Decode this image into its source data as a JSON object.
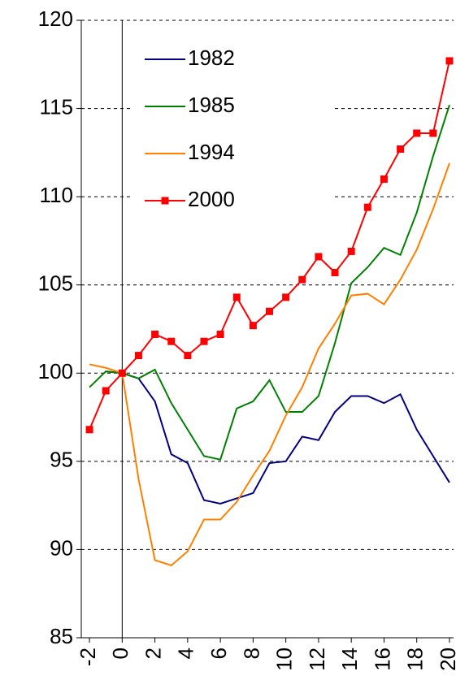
{
  "chart_data": {
    "type": "line",
    "x": [
      -2,
      -1,
      0,
      1,
      2,
      3,
      4,
      5,
      6,
      7,
      8,
      9,
      10,
      11,
      12,
      13,
      14,
      15,
      16,
      17,
      18,
      19,
      20
    ],
    "series": [
      {
        "name": "1982",
        "color": "#000080",
        "values": [
          null,
          100.1,
          100,
          99.7,
          98.4,
          95.4,
          94.9,
          92.8,
          92.6,
          92.9,
          93.2,
          94.9,
          95.0,
          96.4,
          96.2,
          97.8,
          98.7,
          98.7,
          98.3,
          98.8,
          96.8,
          95.3,
          93.8
        ]
      },
      {
        "name": "1985",
        "color": "#008000",
        "values": [
          99.2,
          100.1,
          100,
          99.7,
          100.2,
          98.3,
          96.8,
          95.3,
          95.1,
          98.0,
          98.4,
          99.6,
          97.8,
          97.8,
          98.7,
          101.7,
          105.1,
          106.0,
          107.1,
          106.7,
          109.1,
          112.3,
          115.2
        ]
      },
      {
        "name": "1994",
        "color": "#ff8000",
        "values": [
          100.5,
          100.3,
          100,
          94.0,
          89.4,
          89.1,
          89.9,
          91.7,
          91.7,
          92.7,
          94.2,
          95.6,
          97.6,
          99.2,
          101.4,
          102.8,
          104.4,
          104.5,
          103.9,
          105.3,
          107.0,
          109.3,
          111.9
        ]
      },
      {
        "name": "2000",
        "color": "#ff0000",
        "marker": "square",
        "values": [
          96.8,
          99.0,
          100,
          101.0,
          102.2,
          101.8,
          101.0,
          101.8,
          102.2,
          104.3,
          102.7,
          103.5,
          104.3,
          105.3,
          106.6,
          105.7,
          106.9,
          109.4,
          111.0,
          112.7,
          113.6,
          113.6,
          117.7
        ]
      }
    ],
    "xlim": [
      -2.5,
      20.25
    ],
    "xticks": [
      -2,
      0,
      2,
      4,
      6,
      8,
      10,
      12,
      14,
      16,
      18,
      20
    ],
    "ylim": [
      85,
      120
    ],
    "yticks": [
      85,
      90,
      95,
      100,
      105,
      110,
      115,
      120
    ],
    "vline": 0,
    "grid": true,
    "legend": "upper left"
  }
}
